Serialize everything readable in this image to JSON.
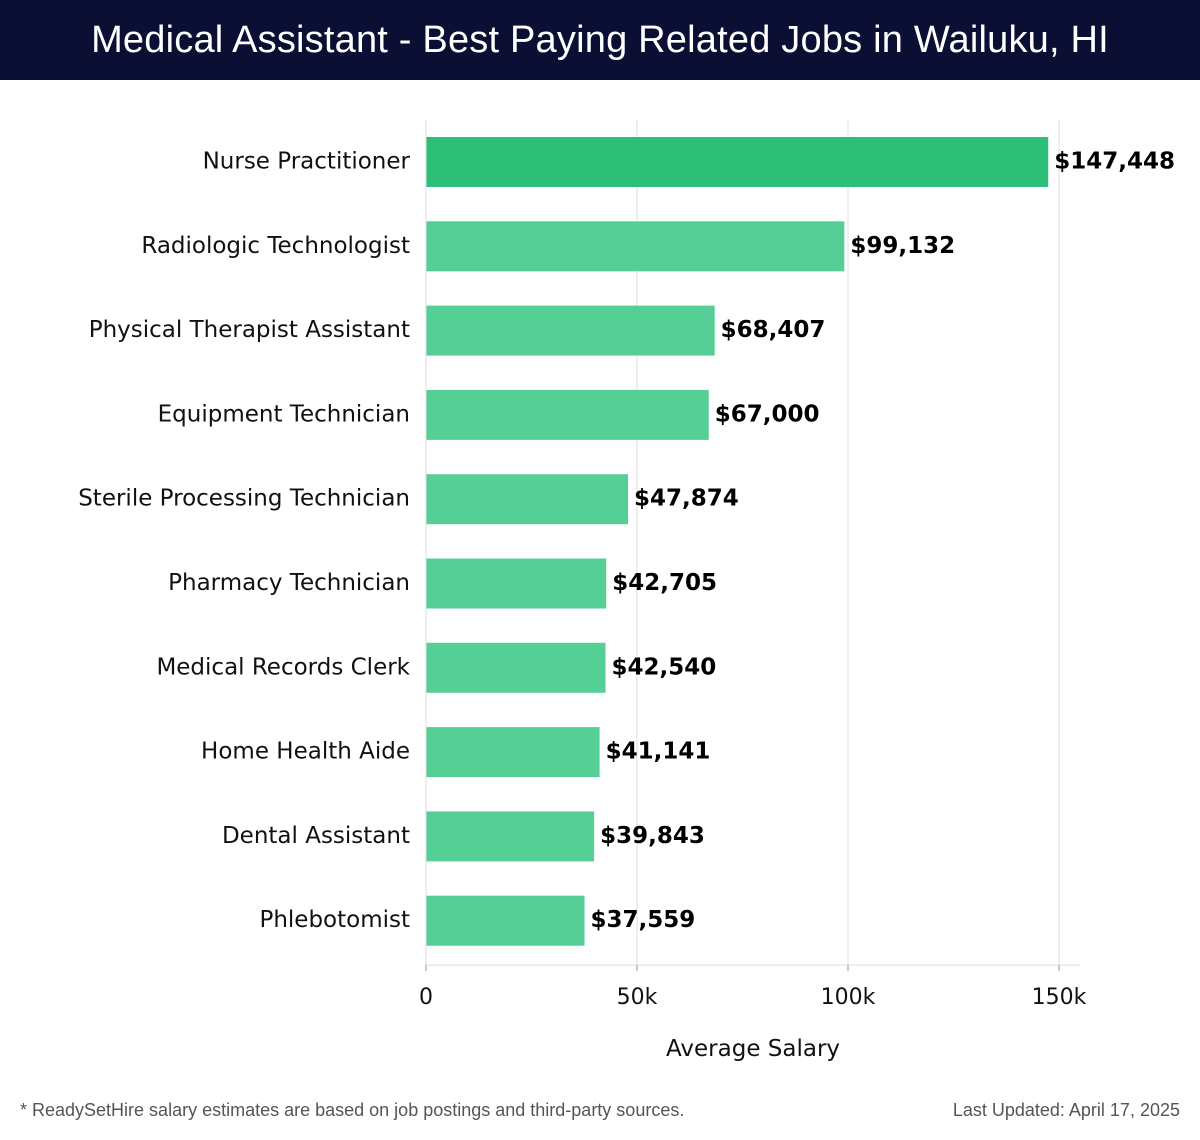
{
  "header": {
    "title": "Medical Assistant - Best Paying Related Jobs in Wailuku, HI"
  },
  "footer": {
    "note": "* ReadySetHire salary estimates are based on job postings and third-party sources.",
    "updated": "Last Updated: April 17, 2025"
  },
  "colors": {
    "header_bg": "#0b0f33",
    "top_bar": "#2dbf78",
    "bar": "#56cf96",
    "grid": "#dddddd"
  },
  "chart_data": {
    "type": "bar",
    "orientation": "horizontal",
    "title": "Medical Assistant - Best Paying Related Jobs in Wailuku, HI",
    "xlabel": "Average Salary",
    "ylabel": "",
    "xlim": [
      0,
      155000
    ],
    "ticks": [
      {
        "value": 0,
        "label": "0"
      },
      {
        "value": 50000,
        "label": "50k"
      },
      {
        "value": 100000,
        "label": "100k"
      },
      {
        "value": 150000,
        "label": "150k"
      }
    ],
    "grid": true,
    "categories": [
      "Nurse Practitioner",
      "Radiologic Technologist",
      "Physical Therapist Assistant",
      "Equipment Technician",
      "Sterile Processing Technician",
      "Pharmacy Technician",
      "Medical Records Clerk",
      "Home Health Aide",
      "Dental Assistant",
      "Phlebotomist"
    ],
    "values": [
      147448,
      99132,
      68407,
      67000,
      47874,
      42705,
      42540,
      41141,
      39843,
      37559
    ],
    "value_labels": [
      "$147,448",
      "$99,132",
      "$68,407",
      "$67,000",
      "$47,874",
      "$42,705",
      "$42,540",
      "$41,141",
      "$39,843",
      "$37,559"
    ]
  }
}
